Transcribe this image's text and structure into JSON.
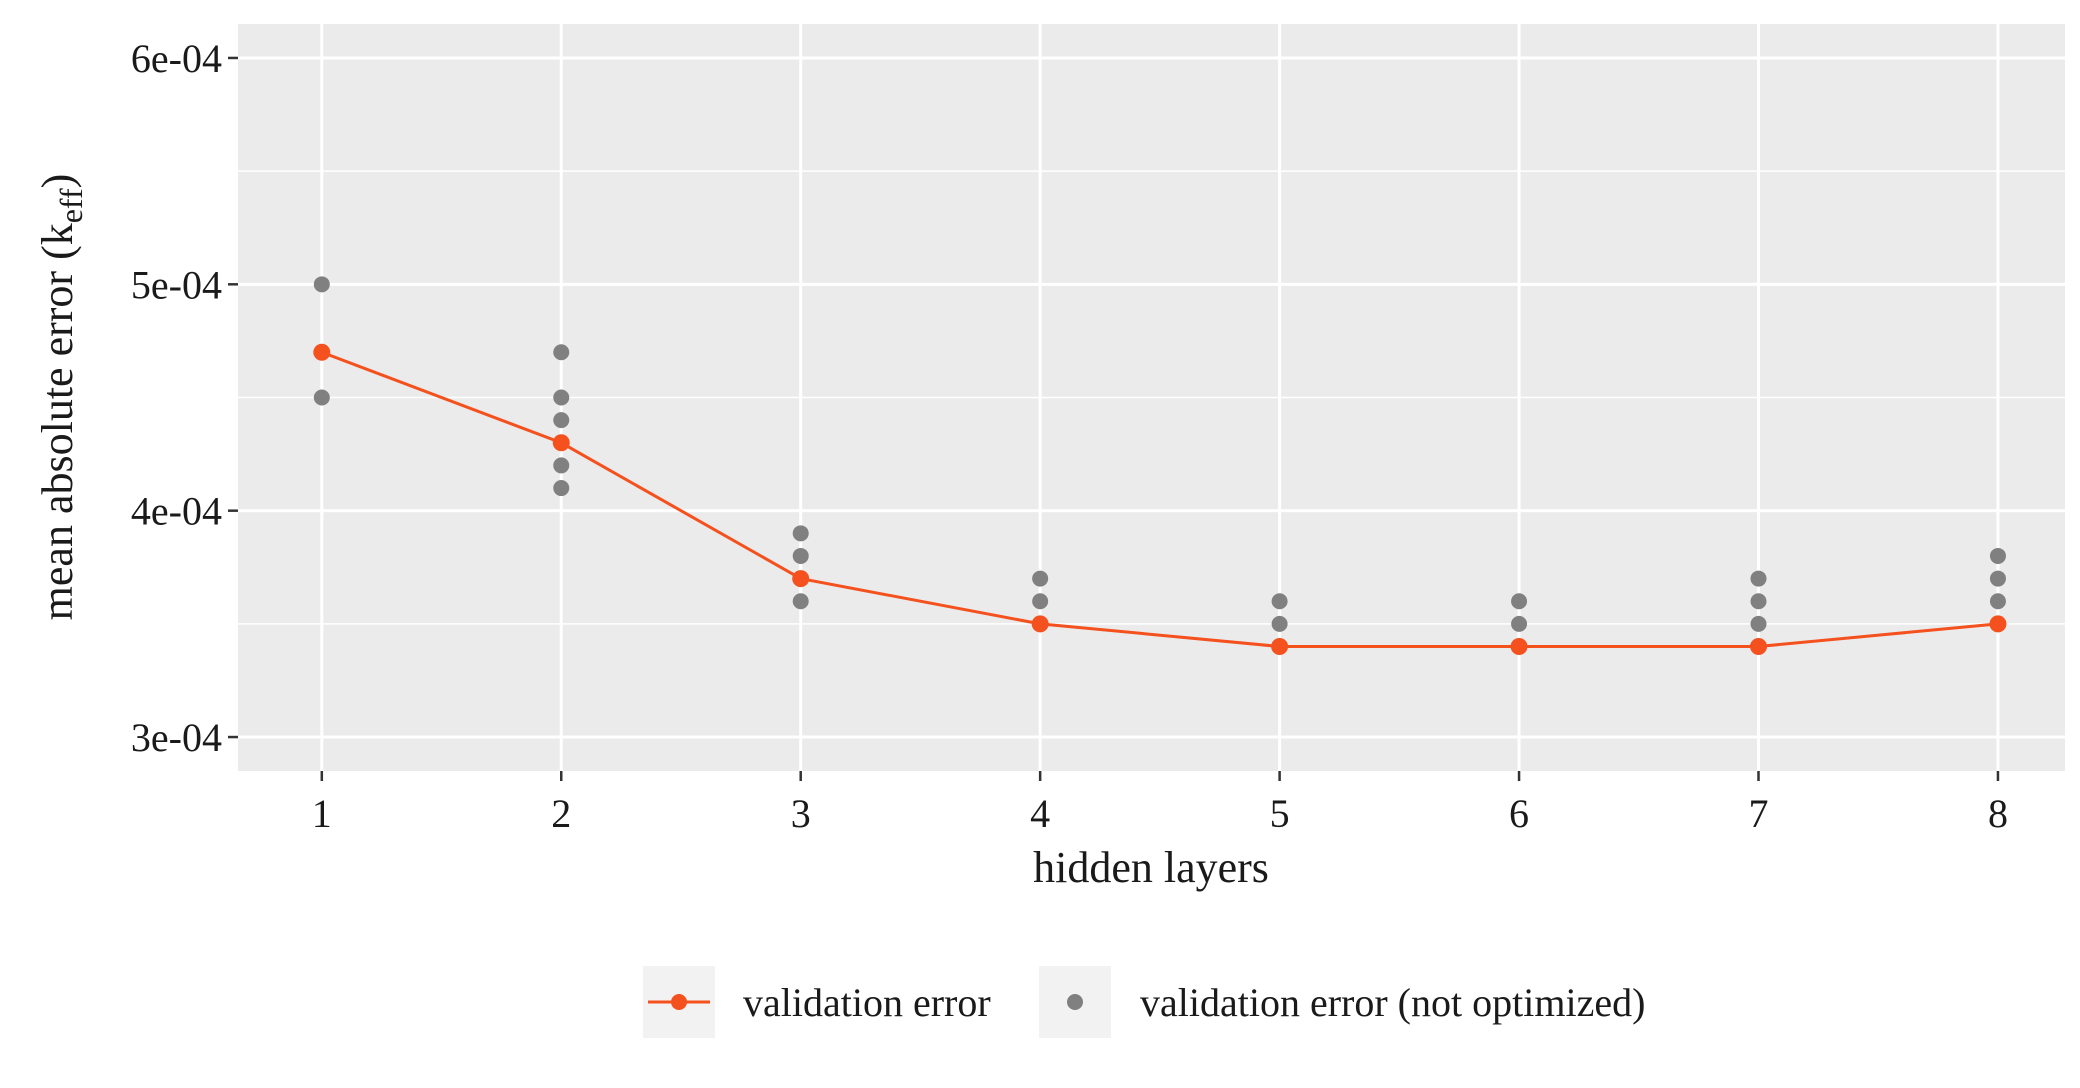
{
  "chart_data": {
    "type": "line",
    "title": "",
    "xlabel": "hidden layers",
    "ylabel": "mean absolute error (k",
    "ylabel_subscript": "eff",
    "ylabel_close": ")",
    "x": [
      1,
      2,
      3,
      4,
      5,
      6,
      7,
      8
    ],
    "x_tick_labels": [
      "1",
      "2",
      "3",
      "4",
      "5",
      "6",
      "7",
      "8"
    ],
    "xlim": [
      0.65,
      8.28
    ],
    "ylim": [
      0.000285,
      0.000615
    ],
    "y_ticks": [
      0.0003,
      0.0004,
      0.0005,
      0.0006
    ],
    "y_tick_labels": [
      "3e-04",
      "4e-04",
      "5e-04",
      "6e-04"
    ],
    "grid": true,
    "legend_position": "bottom",
    "series": [
      {
        "name": "validation error",
        "kind": "line+points",
        "color": "#f4511e",
        "x": [
          1,
          2,
          3,
          4,
          5,
          6,
          7,
          8
        ],
        "y": [
          0.00047,
          0.00043,
          0.00037,
          0.00035,
          0.00034,
          0.00034,
          0.00034,
          0.00035
        ]
      },
      {
        "name": "validation error (not optimized)",
        "kind": "points",
        "color": "#808080",
        "x": [
          1,
          1,
          2,
          2,
          2,
          2,
          2,
          3,
          3,
          3,
          4,
          4,
          5,
          5,
          6,
          6,
          7,
          7,
          7,
          8,
          8,
          8
        ],
        "y": [
          0.0005,
          0.00045,
          0.00047,
          0.00045,
          0.00044,
          0.00042,
          0.00041,
          0.00039,
          0.00038,
          0.00036,
          0.00037,
          0.00036,
          0.00036,
          0.00035,
          0.00036,
          0.00035,
          0.00037,
          0.00036,
          0.00035,
          0.00038,
          0.00037,
          0.00036
        ]
      }
    ],
    "colors": {
      "panel": "#ebebeb",
      "grid": "#ffffff",
      "axis": "#333333"
    }
  }
}
